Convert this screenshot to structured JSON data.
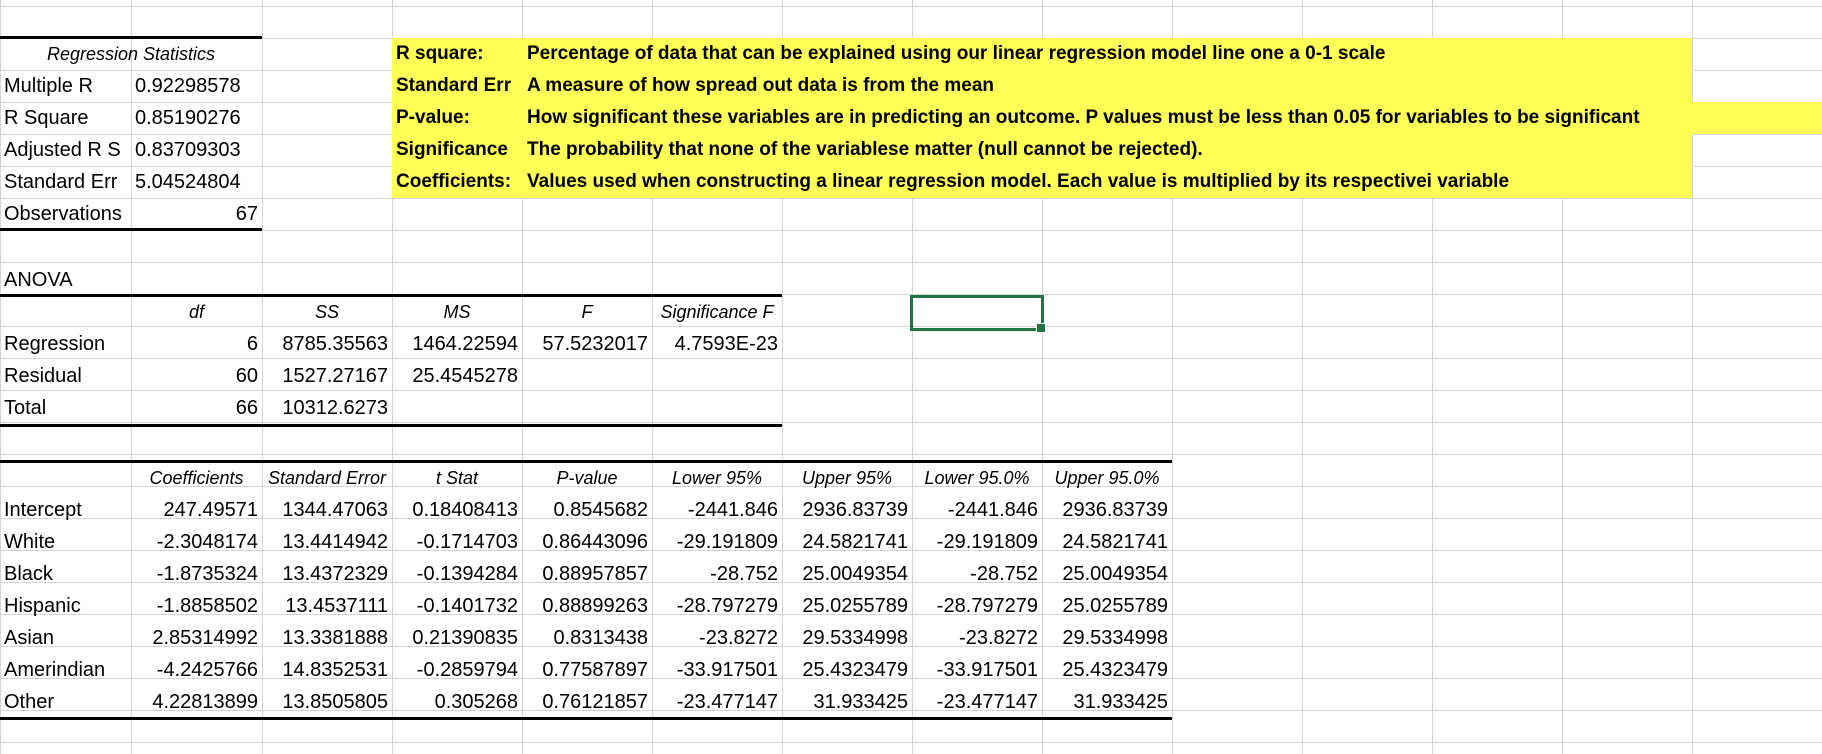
{
  "regression_statistics": {
    "title": "Regression Statistics",
    "rows": [
      {
        "label": "Multiple R",
        "value": "0.92298578"
      },
      {
        "label": "R Square",
        "value": "0.85190276"
      },
      {
        "label": "Adjusted R S",
        "value": "0.83709303"
      },
      {
        "label": "Standard Err",
        "value": "5.04524804"
      },
      {
        "label": "Observations",
        "value": "67"
      }
    ]
  },
  "notes": [
    {
      "term": "R square:",
      "text": "Percentage of data that can be explained using our linear regression model line one a 0-1 scale"
    },
    {
      "term": "Standard Err",
      "text": "A measure of how spread out data is from the mean"
    },
    {
      "term": "P-value:",
      "text": "How significant these variables are in predicting an outcome. P values must be less than 0.05 for variables to be significant"
    },
    {
      "term": "Significance",
      "text": "The probability that none of the variablese matter (null cannot be rejected)."
    },
    {
      "term": "Coefficients:",
      "text": "Values used when constructing a linear regression model. Each value is multiplied by its respectivei variable"
    }
  ],
  "anova": {
    "title": "ANOVA",
    "headers": [
      "",
      "df",
      "SS",
      "MS",
      "F",
      "Significance F"
    ],
    "rows": [
      [
        "Regression",
        "6",
        "8785.35563",
        "1464.22594",
        "57.5232017",
        "4.7593E-23"
      ],
      [
        "Residual",
        "60",
        "1527.27167",
        "25.4545278",
        "",
        ""
      ],
      [
        "Total",
        "66",
        "10312.6273",
        "",
        "",
        ""
      ]
    ]
  },
  "coefficients": {
    "headers": [
      "",
      "Coefficients",
      "Standard Error",
      "t Stat",
      "P-value",
      "Lower 95%",
      "Upper 95%",
      "Lower 95.0%",
      "Upper 95.0%"
    ],
    "rows": [
      [
        "Intercept",
        "247.49571",
        "1344.47063",
        "0.18408413",
        "0.8545682",
        "-2441.846",
        "2936.83739",
        "-2441.846",
        "2936.83739"
      ],
      [
        "White",
        "-2.3048174",
        "13.4414942",
        "-0.1714703",
        "0.86443096",
        "-29.191809",
        "24.5821741",
        "-29.191809",
        "24.5821741"
      ],
      [
        "Black",
        "-1.8735324",
        "13.4372329",
        "-0.1394284",
        "0.88957857",
        "-28.752",
        "25.0049354",
        "-28.752",
        "25.0049354"
      ],
      [
        "Hispanic",
        "-1.8858502",
        "13.4537111",
        "-0.1401732",
        "0.88899263",
        "-28.797279",
        "25.0255789",
        "-28.797279",
        "25.0255789"
      ],
      [
        "Asian",
        "2.85314992",
        "13.3381888",
        "0.21390835",
        "0.8313438",
        "-23.8272",
        "29.5334998",
        "-23.8272",
        "29.5334998"
      ],
      [
        "Amerindian",
        "-4.2425766",
        "14.8352531",
        "-0.2859794",
        "0.77587897",
        "-33.917501",
        "25.4323479",
        "-33.917501",
        "25.4323479"
      ],
      [
        "Other",
        "4.22813899",
        "13.8505805",
        "0.305268",
        "0.76121857",
        "-23.477147",
        "31.933425",
        "-23.477147",
        "31.933425"
      ]
    ]
  },
  "colors": {
    "highlight": "#ffff57",
    "gridline": "#d4d4d4",
    "selection": "#217346"
  }
}
